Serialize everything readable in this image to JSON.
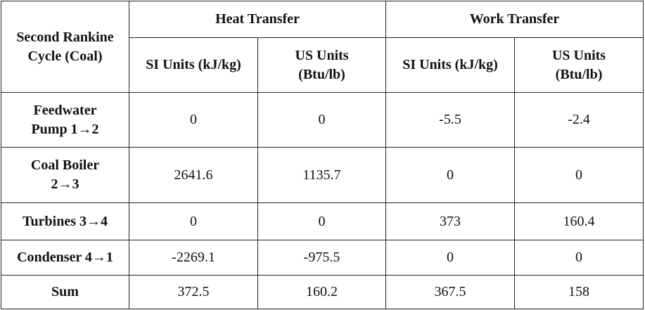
{
  "table": {
    "corner": "Second Rankine Cycle (Coal)",
    "groups": [
      "Heat Transfer",
      "Work Transfer"
    ],
    "units": [
      "SI Units (kJ/kg)",
      "US Units (Btu/lb)",
      "SI Units (kJ/kg)",
      "US Units (Btu/lb)"
    ],
    "rows": [
      {
        "label": "Feedwater Pump 1→2",
        "values": [
          "0",
          "0",
          "-5.5",
          "-2.4"
        ]
      },
      {
        "label": "Coal Boiler 2→3",
        "values": [
          "2641.6",
          "1135.7",
          "0",
          "0"
        ]
      },
      {
        "label": "Turbines 3→4",
        "values": [
          "0",
          "0",
          "373",
          "160.4"
        ]
      },
      {
        "label": "Condenser 4→1",
        "values": [
          "-2269.1",
          "-975.5",
          "0",
          "0"
        ]
      },
      {
        "label": "Sum",
        "values": [
          "372.5",
          "160.2",
          "367.5",
          "158"
        ]
      }
    ]
  }
}
